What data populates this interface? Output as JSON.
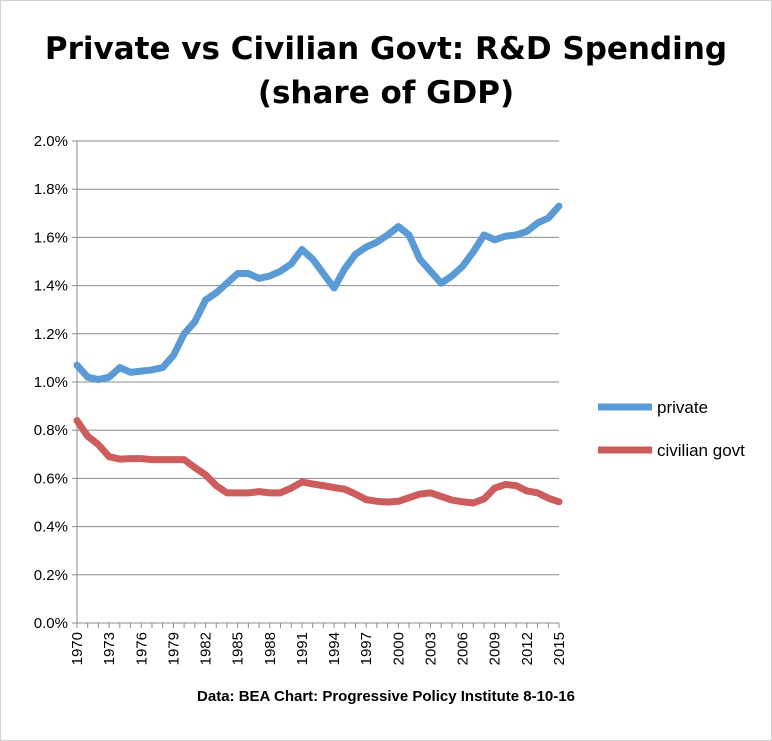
{
  "chart_data": {
    "type": "line",
    "title_line1": "Private vs Civilian Govt: R&D Spending",
    "title_line2": "(share of GDP)",
    "xlabel": "",
    "ylabel": "",
    "source_note": "Data: BEA  Chart: Progressive Policy Institute 8-10-16",
    "ylim": [
      0,
      2.0
    ],
    "y_ticks": [
      "0.0%",
      "0.2%",
      "0.4%",
      "0.6%",
      "0.8%",
      "1.0%",
      "1.2%",
      "1.4%",
      "1.6%",
      "1.8%",
      "2.0%"
    ],
    "y_tick_values": [
      0,
      0.2,
      0.4,
      0.6,
      0.8,
      1.0,
      1.2,
      1.4,
      1.6,
      1.8,
      2.0
    ],
    "x_tick_labels": [
      "1970",
      "1973",
      "1976",
      "1979",
      "1982",
      "1985",
      "1988",
      "1991",
      "1994",
      "1997",
      "2000",
      "2003",
      "2006",
      "2009",
      "2012",
      "2015"
    ],
    "x": [
      1970,
      1971,
      1972,
      1973,
      1974,
      1975,
      1976,
      1977,
      1978,
      1979,
      1980,
      1981,
      1982,
      1983,
      1984,
      1985,
      1986,
      1987,
      1988,
      1989,
      1990,
      1991,
      1992,
      1993,
      1994,
      1995,
      1996,
      1997,
      1998,
      1999,
      2000,
      2001,
      2002,
      2003,
      2004,
      2005,
      2006,
      2007,
      2008,
      2009,
      2010,
      2011,
      2012,
      2013,
      2014,
      2015
    ],
    "legend_position": "right",
    "grid": "horizontal",
    "series": [
      {
        "name": "private",
        "color": "#5B9BD5",
        "values": [
          1.07,
          1.02,
          1.01,
          1.02,
          1.06,
          1.04,
          1.045,
          1.05,
          1.06,
          1.11,
          1.2,
          1.25,
          1.34,
          1.37,
          1.41,
          1.45,
          1.45,
          1.43,
          1.44,
          1.46,
          1.49,
          1.55,
          1.51,
          1.45,
          1.39,
          1.47,
          1.53,
          1.56,
          1.58,
          1.61,
          1.645,
          1.61,
          1.51,
          1.46,
          1.41,
          1.44,
          1.48,
          1.54,
          1.61,
          1.59,
          1.605,
          1.61,
          1.625,
          1.66,
          1.68,
          1.73
        ]
      },
      {
        "name": "civilian govt",
        "color": "#CD5C5C",
        "values": [
          0.84,
          0.775,
          0.74,
          0.69,
          0.68,
          0.682,
          0.682,
          0.678,
          0.678,
          0.678,
          0.678,
          0.645,
          0.615,
          0.57,
          0.54,
          0.54,
          0.54,
          0.545,
          0.54,
          0.54,
          0.56,
          0.585,
          0.577,
          0.57,
          0.562,
          0.555,
          0.535,
          0.512,
          0.505,
          0.502,
          0.505,
          0.52,
          0.535,
          0.54,
          0.525,
          0.51,
          0.503,
          0.498,
          0.515,
          0.56,
          0.575,
          0.57,
          0.548,
          0.54,
          0.518,
          0.503
        ]
      }
    ]
  }
}
